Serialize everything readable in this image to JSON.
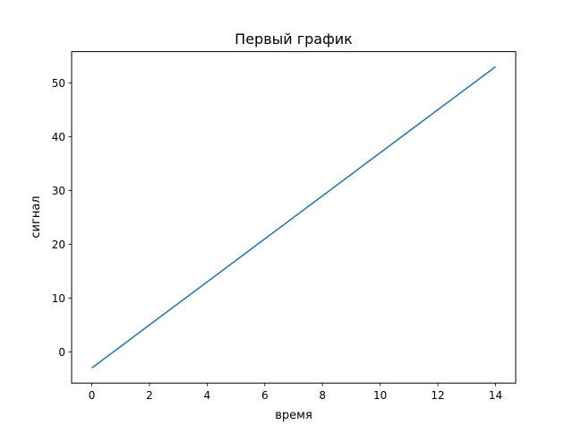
{
  "chart_data": {
    "type": "line",
    "title": "Первый график",
    "xlabel": "время",
    "ylabel": "сигнал",
    "xlim": [
      -0.7,
      14.7
    ],
    "ylim": [
      -5.8,
      55.8
    ],
    "xticks": [
      0,
      2,
      4,
      6,
      8,
      10,
      12,
      14
    ],
    "yticks": [
      0,
      10,
      20,
      30,
      40,
      50
    ],
    "grid": false,
    "series": [
      {
        "color": "#1f77b4",
        "x": [
          0,
          1,
          2,
          3,
          4,
          5,
          6,
          7,
          8,
          9,
          10,
          11,
          12,
          13,
          14
        ],
        "y": [
          -3,
          1,
          5,
          9,
          13,
          17,
          21,
          25,
          29,
          33,
          37,
          41,
          45,
          49,
          53
        ]
      }
    ]
  }
}
